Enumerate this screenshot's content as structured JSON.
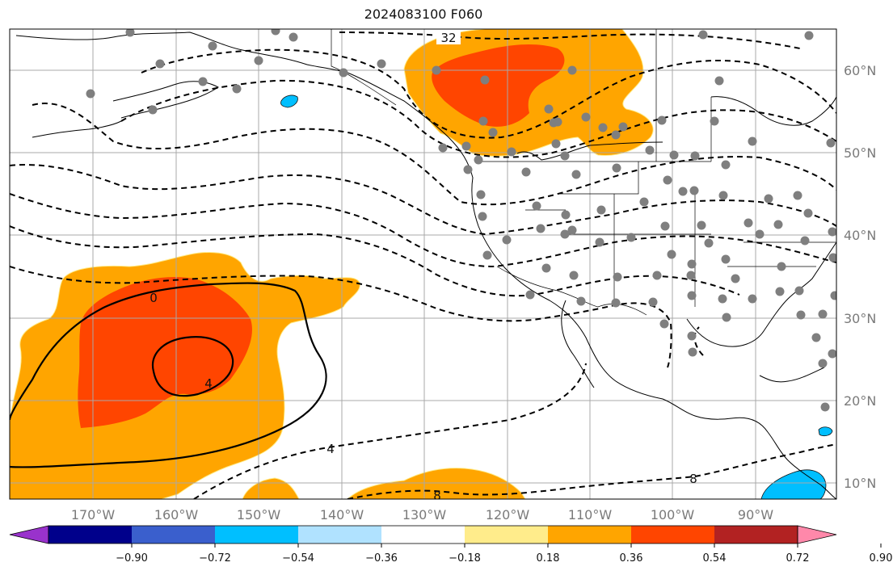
{
  "title": "2024083100 F060",
  "lon_labels": [
    "170°W",
    "160°W",
    "150°W",
    "140°W",
    "130°W",
    "120°W",
    "110°W",
    "100°W",
    "90°W"
  ],
  "lat_labels": [
    "60°N",
    "50°N",
    "40°N",
    "30°N",
    "20°N",
    "10°N"
  ],
  "colorbar": {
    "ticks": [
      "−0.90",
      "−0.72",
      "−0.54",
      "−0.36",
      "−0.18",
      "0.18",
      "0.36",
      "0.54",
      "0.72",
      "0.90"
    ],
    "colors": [
      "#9932cc",
      "#00008b",
      "#3a5fcd",
      "#00bfff",
      "#b0e2ff",
      "#ffffff",
      "#ffec8b",
      "#ffa500",
      "#ff4500",
      "#b22222",
      "#ff88aa"
    ]
  },
  "contour_labels": [
    "32",
    "0",
    "4",
    "4",
    "8",
    "8"
  ],
  "fill_colors": {
    "orange": "#ffa500",
    "red": "#ff4500",
    "blue": "#00bfff"
  }
}
